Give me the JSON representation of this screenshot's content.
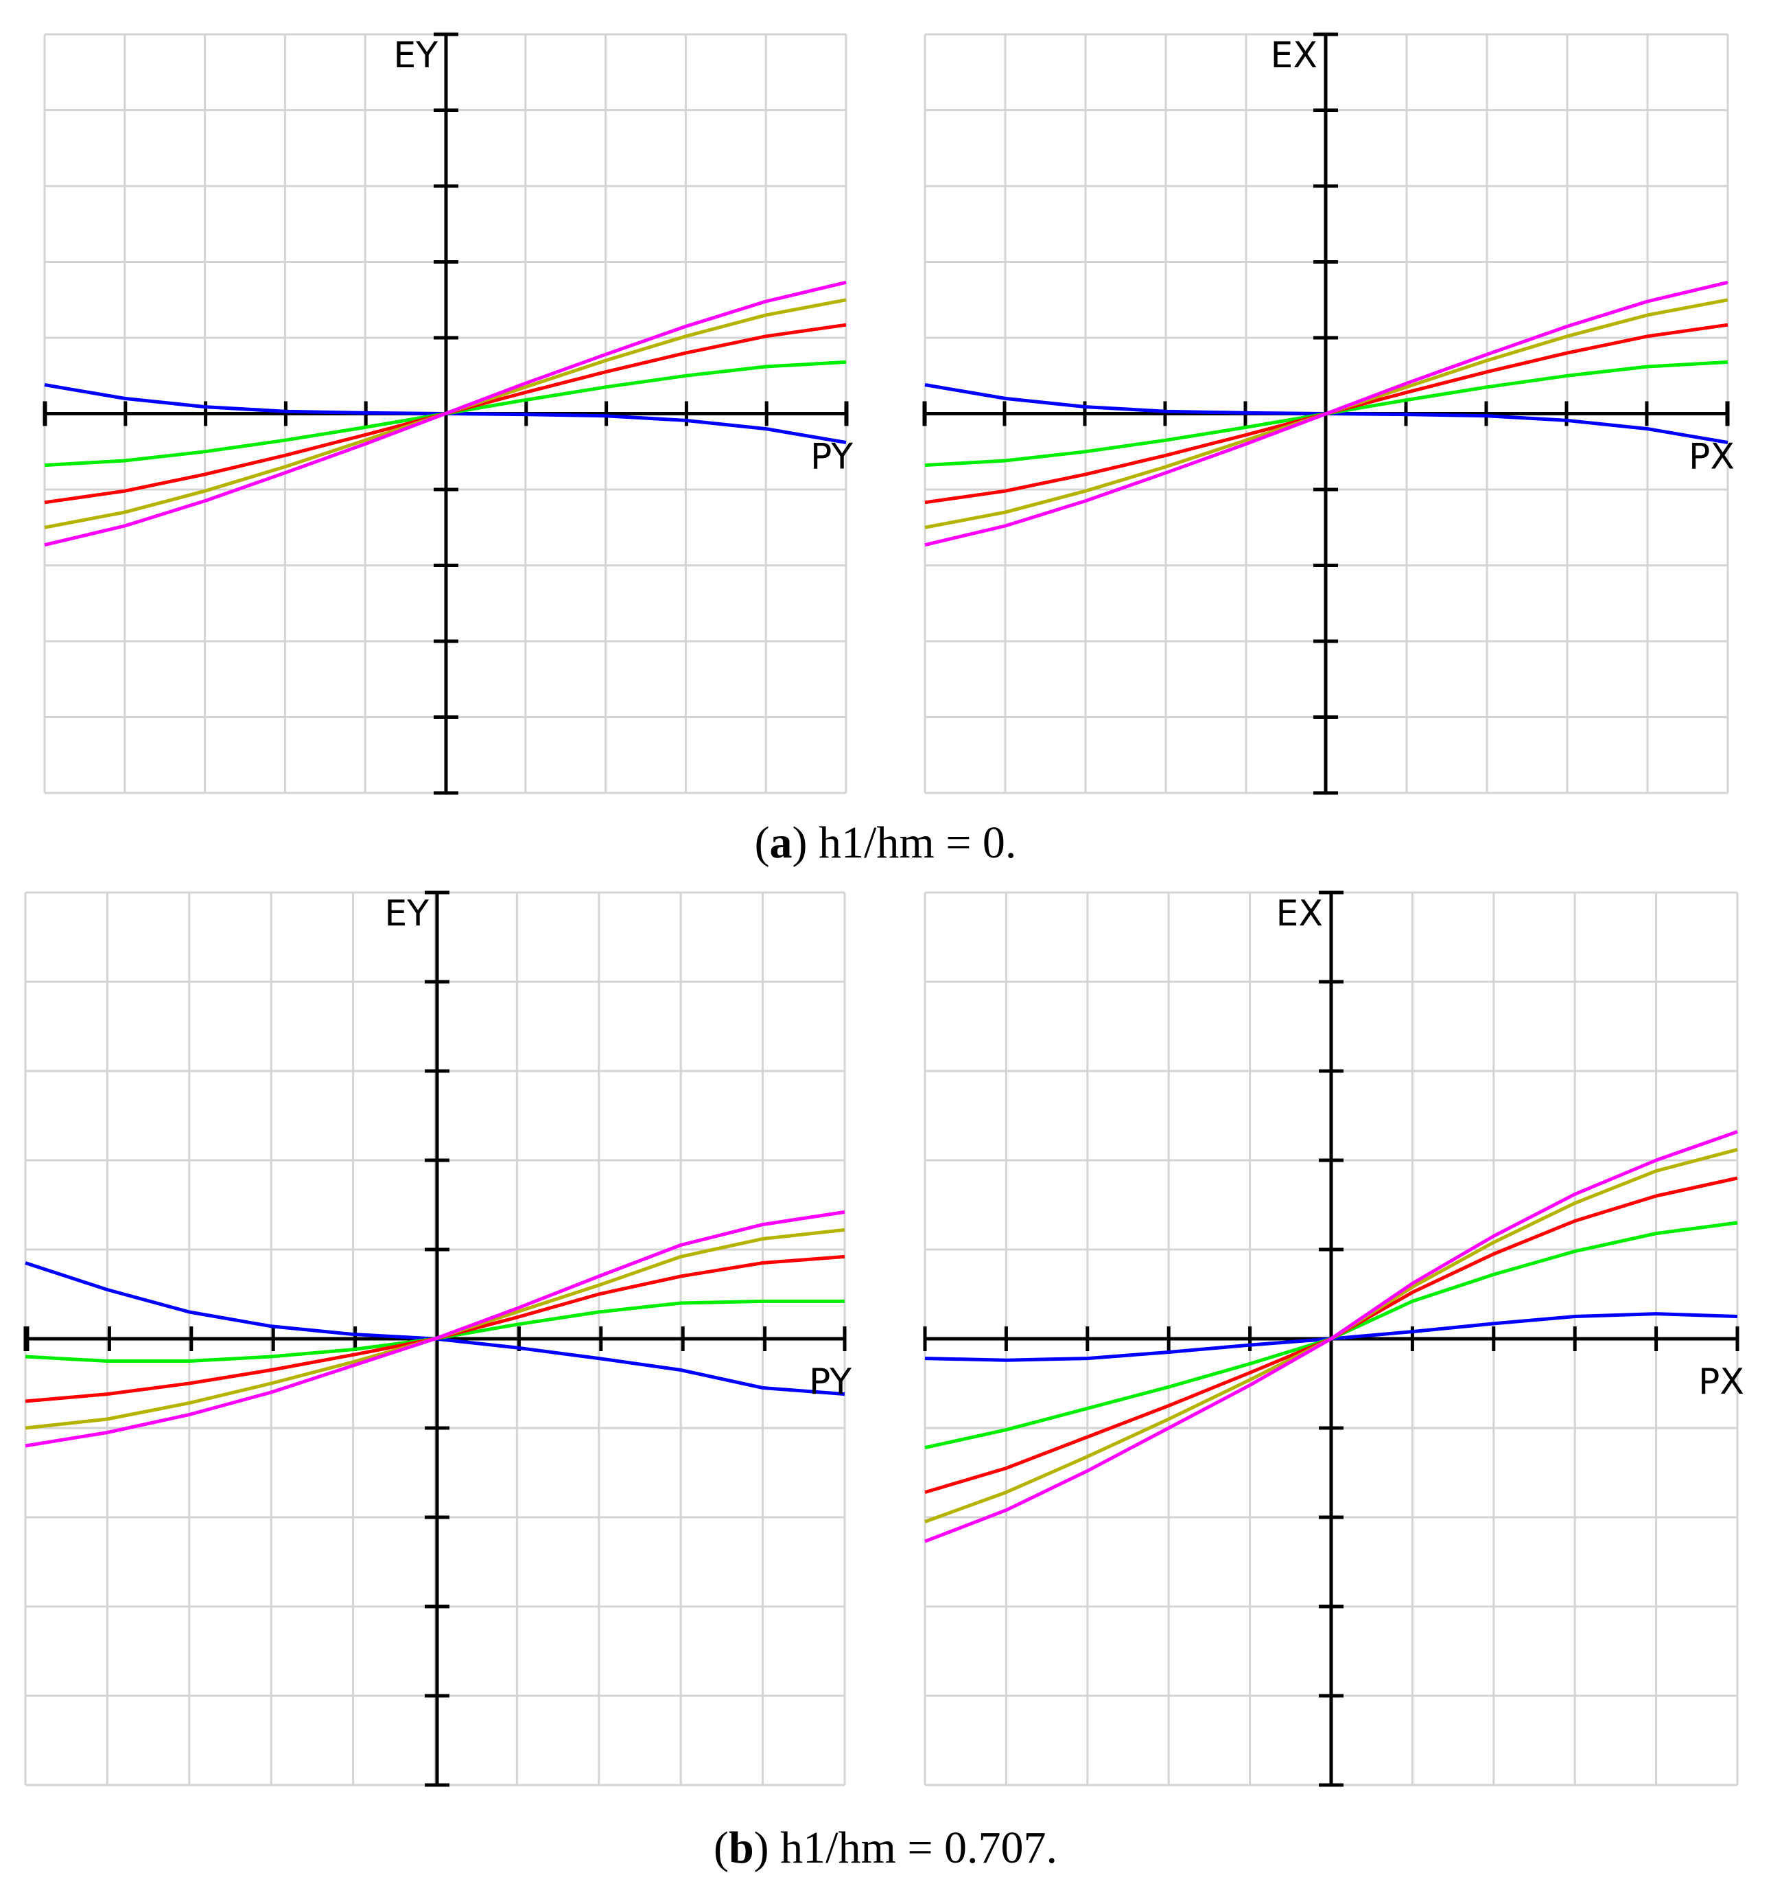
{
  "figure": {
    "captions": [
      {
        "letter": "a",
        "text": " h1/hm = 0."
      },
      {
        "letter": "b",
        "text": " h1/hm = 0.707."
      }
    ]
  },
  "colors": {
    "grid": "#d4d4d4",
    "axis": "#000000",
    "series": [
      "#0000ff",
      "#00ee00",
      "#ff0000",
      "#b4b400",
      "#ff00ff"
    ]
  },
  "chart_data": [
    {
      "type": "line",
      "panel": "a-left",
      "xlabel": "PY",
      "ylabel": "EY",
      "xlim": [
        -5,
        5
      ],
      "ylim": [
        -5,
        5
      ],
      "grid": true,
      "x": [
        -5,
        -4,
        -3,
        -2,
        -1,
        0,
        1,
        2,
        3,
        4,
        5
      ],
      "series": [
        {
          "name": "blue",
          "values": [
            0.38,
            0.2,
            0.09,
            0.03,
            0.01,
            0,
            -0.01,
            -0.03,
            -0.09,
            -0.2,
            -0.38
          ]
        },
        {
          "name": "green",
          "values": [
            -0.68,
            -0.62,
            -0.5,
            -0.35,
            -0.18,
            0,
            0.18,
            0.35,
            0.5,
            0.62,
            0.68
          ]
        },
        {
          "name": "red",
          "values": [
            -1.17,
            -1.02,
            -0.8,
            -0.55,
            -0.28,
            0,
            0.28,
            0.55,
            0.8,
            1.02,
            1.17
          ]
        },
        {
          "name": "olive",
          "values": [
            -1.5,
            -1.3,
            -1.02,
            -0.7,
            -0.35,
            0,
            0.35,
            0.7,
            1.02,
            1.3,
            1.5
          ]
        },
        {
          "name": "magenta",
          "values": [
            -1.73,
            -1.48,
            -1.15,
            -0.78,
            -0.4,
            0,
            0.4,
            0.78,
            1.15,
            1.48,
            1.73
          ]
        }
      ]
    },
    {
      "type": "line",
      "panel": "a-right",
      "xlabel": "PX",
      "ylabel": "EX",
      "xlim": [
        -5,
        5
      ],
      "ylim": [
        -5,
        5
      ],
      "grid": true,
      "x": [
        -5,
        -4,
        -3,
        -2,
        -1,
        0,
        1,
        2,
        3,
        4,
        5
      ],
      "series": [
        {
          "name": "blue",
          "values": [
            0.38,
            0.2,
            0.09,
            0.03,
            0.01,
            0,
            -0.01,
            -0.03,
            -0.09,
            -0.2,
            -0.38
          ]
        },
        {
          "name": "green",
          "values": [
            -0.68,
            -0.62,
            -0.5,
            -0.35,
            -0.18,
            0,
            0.18,
            0.35,
            0.5,
            0.62,
            0.68
          ]
        },
        {
          "name": "red",
          "values": [
            -1.17,
            -1.02,
            -0.8,
            -0.55,
            -0.28,
            0,
            0.28,
            0.55,
            0.8,
            1.02,
            1.17
          ]
        },
        {
          "name": "olive",
          "values": [
            -1.5,
            -1.3,
            -1.02,
            -0.7,
            -0.35,
            0,
            0.35,
            0.7,
            1.02,
            1.3,
            1.5
          ]
        },
        {
          "name": "magenta",
          "values": [
            -1.73,
            -1.48,
            -1.15,
            -0.78,
            -0.4,
            0,
            0.4,
            0.78,
            1.15,
            1.48,
            1.73
          ]
        }
      ]
    },
    {
      "type": "line",
      "panel": "b-left",
      "xlabel": "PY",
      "ylabel": "EY",
      "xlim": [
        -5,
        5
      ],
      "ylim": [
        -5,
        5
      ],
      "grid": true,
      "x": [
        -5,
        -4,
        -3,
        -2,
        -1,
        0,
        1,
        2,
        3,
        4,
        5
      ],
      "series": [
        {
          "name": "blue",
          "values": [
            0.85,
            0.55,
            0.3,
            0.14,
            0.05,
            0,
            -0.1,
            -0.22,
            -0.35,
            -0.55,
            -0.62
          ]
        },
        {
          "name": "green",
          "values": [
            -0.2,
            -0.25,
            -0.25,
            -0.2,
            -0.12,
            0,
            0.16,
            0.3,
            0.4,
            0.42,
            0.42
          ]
        },
        {
          "name": "red",
          "values": [
            -0.7,
            -0.62,
            -0.5,
            -0.35,
            -0.18,
            0,
            0.24,
            0.5,
            0.7,
            0.85,
            0.92
          ]
        },
        {
          "name": "olive",
          "values": [
            -1.0,
            -0.9,
            -0.72,
            -0.5,
            -0.26,
            0,
            0.3,
            0.6,
            0.92,
            1.12,
            1.22
          ]
        },
        {
          "name": "magenta",
          "values": [
            -1.2,
            -1.05,
            -0.85,
            -0.6,
            -0.3,
            0,
            0.34,
            0.7,
            1.05,
            1.28,
            1.42
          ]
        }
      ]
    },
    {
      "type": "line",
      "panel": "b-right",
      "xlabel": "PX",
      "ylabel": "EX",
      "xlim": [
        -5,
        5
      ],
      "ylim": [
        -5,
        5
      ],
      "grid": true,
      "x": [
        -5,
        -4,
        -3,
        -2,
        -1,
        0,
        1,
        2,
        3,
        4,
        5
      ],
      "series": [
        {
          "name": "blue",
          "values": [
            -0.22,
            -0.24,
            -0.22,
            -0.15,
            -0.07,
            0,
            0.08,
            0.17,
            0.25,
            0.28,
            0.25
          ]
        },
        {
          "name": "green",
          "values": [
            -1.22,
            -1.02,
            -0.78,
            -0.54,
            -0.28,
            0,
            0.42,
            0.72,
            0.98,
            1.18,
            1.3
          ]
        },
        {
          "name": "red",
          "values": [
            -1.72,
            -1.45,
            -1.1,
            -0.75,
            -0.38,
            0,
            0.52,
            0.95,
            1.32,
            1.6,
            1.8
          ]
        },
        {
          "name": "olive",
          "values": [
            -2.05,
            -1.72,
            -1.32,
            -0.9,
            -0.46,
            0,
            0.58,
            1.08,
            1.52,
            1.88,
            2.12
          ]
        },
        {
          "name": "magenta",
          "values": [
            -2.27,
            -1.92,
            -1.48,
            -1.0,
            -0.52,
            0,
            0.62,
            1.15,
            1.62,
            2.0,
            2.32
          ]
        }
      ]
    }
  ]
}
